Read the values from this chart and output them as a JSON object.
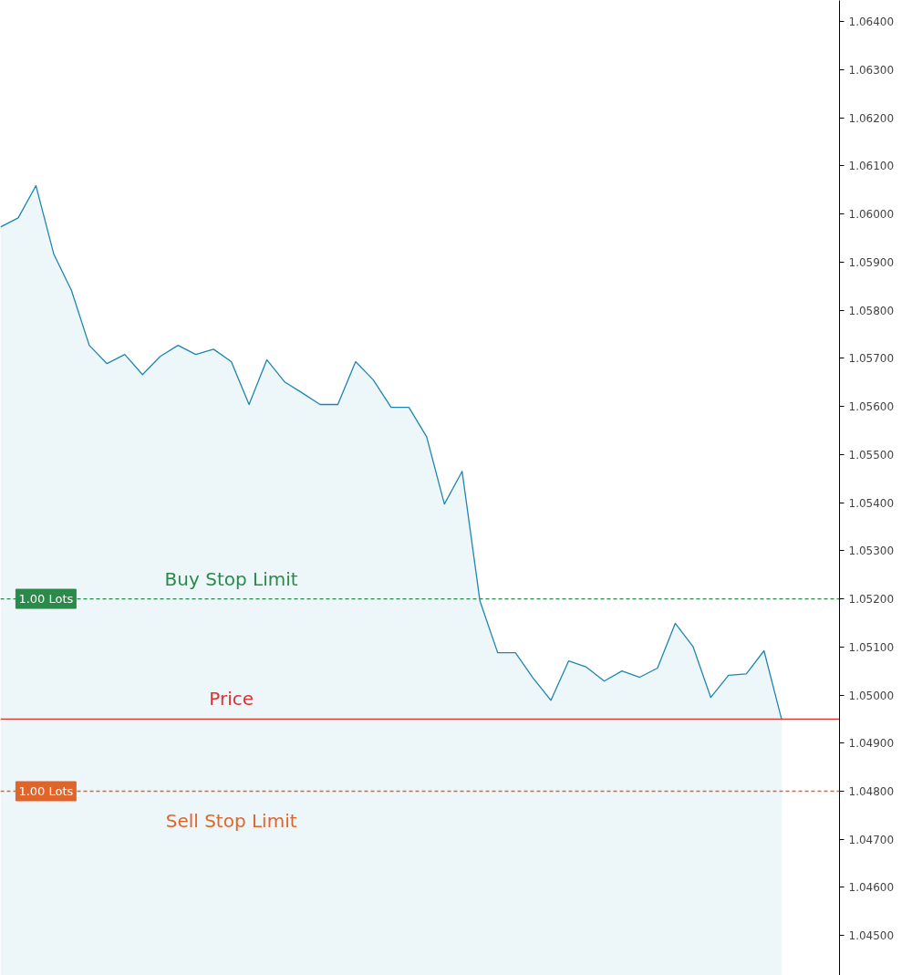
{
  "chart_data": {
    "type": "area",
    "categories": [
      null,
      null,
      null,
      null,
      null,
      null,
      null,
      null,
      null,
      null,
      null,
      null,
      null,
      null,
      null,
      null,
      null,
      null,
      null,
      null,
      null,
      null,
      null,
      null,
      null,
      null,
      null,
      null,
      null,
      null,
      null,
      null,
      null,
      null,
      null,
      null,
      null,
      null,
      null,
      null,
      null,
      null,
      null,
      null,
      null
    ],
    "series": [
      {
        "color": "#1f86b0",
        "values": [
          1.05973,
          1.05992,
          1.06059,
          1.05917,
          1.05841,
          1.05727,
          1.05689,
          1.05708,
          1.05666,
          1.05704,
          1.05727,
          1.05708,
          1.05719,
          1.05693,
          1.05604,
          1.05697,
          1.05651,
          1.05628,
          1.05604,
          1.05604,
          1.05693,
          1.05655,
          1.05598,
          1.05598,
          1.05537,
          1.05397,
          1.05465,
          1.05196,
          1.05088,
          1.05088,
          1.05035,
          1.04989,
          1.05071,
          1.05058,
          1.05029,
          1.0505,
          1.05037,
          1.05056,
          1.05149,
          1.05101,
          1.04995,
          1.05041,
          1.05044,
          1.05092,
          1.04948
        ]
      }
    ],
    "ylim": [
      1.04417,
      1.06444
    ],
    "yticks": [
      {
        "value": 1.045,
        "label": "1.04500"
      },
      {
        "value": 1.046,
        "label": "1.04600"
      },
      {
        "value": 1.047,
        "label": "1.04700"
      },
      {
        "value": 1.048,
        "label": "1.04800"
      },
      {
        "value": 1.049,
        "label": "1.04900"
      },
      {
        "value": 1.05,
        "label": "1.05000"
      },
      {
        "value": 1.051,
        "label": "1.05100"
      },
      {
        "value": 1.052,
        "label": "1.05200"
      },
      {
        "value": 1.053,
        "label": "1.05300"
      },
      {
        "value": 1.054,
        "label": "1.05400"
      },
      {
        "value": 1.055,
        "label": "1.05500"
      },
      {
        "value": 1.056,
        "label": "1.05600"
      },
      {
        "value": 1.057,
        "label": "1.05700"
      },
      {
        "value": 1.058,
        "label": "1.05800"
      },
      {
        "value": 1.059,
        "label": "1.05900"
      },
      {
        "value": 1.06,
        "label": "1.06000"
      },
      {
        "value": 1.061,
        "label": "1.06100"
      },
      {
        "value": 1.062,
        "label": "1.06200"
      },
      {
        "value": 1.063,
        "label": "1.06300"
      },
      {
        "value": 1.064,
        "label": "1.06400"
      }
    ],
    "tick_labels": "y",
    "grid": false,
    "ref_lines": [
      {
        "axis": "y",
        "value": 1.052,
        "label": "Buy Stop Limit",
        "color": "#2a8a4a",
        "line_style": "dashed"
      },
      {
        "axis": "y",
        "value": 1.0495,
        "label": "Price",
        "color": "#e03030",
        "line_style": "solid"
      },
      {
        "axis": "y",
        "value": 1.048,
        "label": "Sell Stop Limit",
        "color": "#e0652a",
        "line_style": "dashed"
      }
    ],
    "annotations": [
      {
        "text": "1.00 Lots",
        "y": 1.052
      },
      {
        "text": "1.00 Lots",
        "y": 1.048
      }
    ]
  }
}
